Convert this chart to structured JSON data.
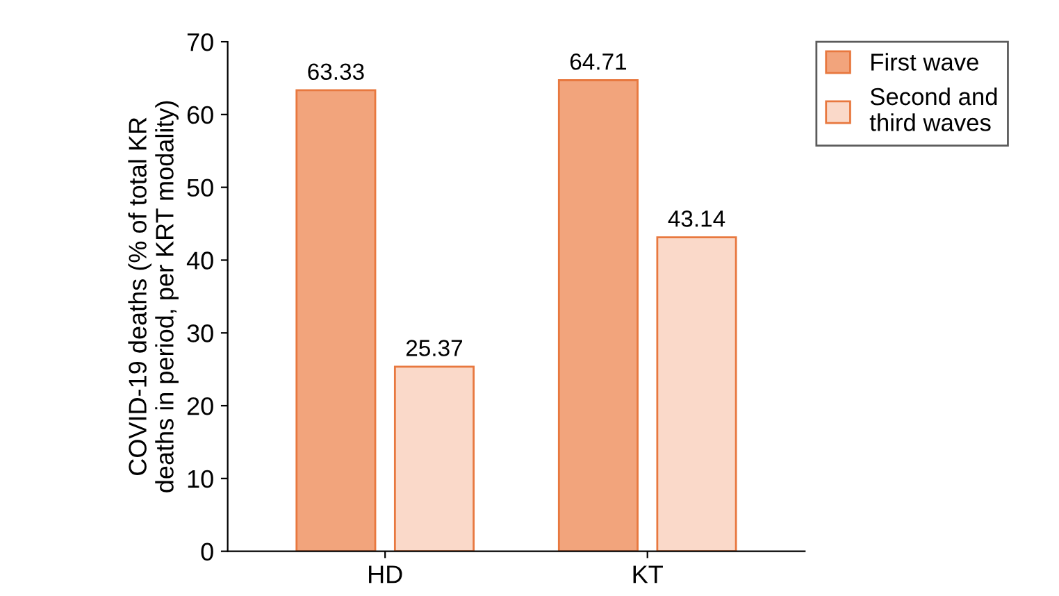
{
  "chart_data": {
    "type": "bar",
    "ylabel": "COVID-19 deaths (% of total KR\ndeaths in period, per KRT modality)",
    "categories": [
      "HD",
      "KT"
    ],
    "series": [
      {
        "name": "First wave",
        "color": "#f2a47c",
        "values": [
          63.33,
          64.71
        ]
      },
      {
        "name": "Second and\nthird waves",
        "color": "#fad9c9",
        "values": [
          25.37,
          43.14
        ]
      }
    ],
    "ylim": [
      0,
      70
    ],
    "yticks": [
      0,
      10,
      20,
      30,
      40,
      50,
      60,
      70
    ],
    "data_labels": true,
    "grid": false,
    "legend": "top right"
  }
}
